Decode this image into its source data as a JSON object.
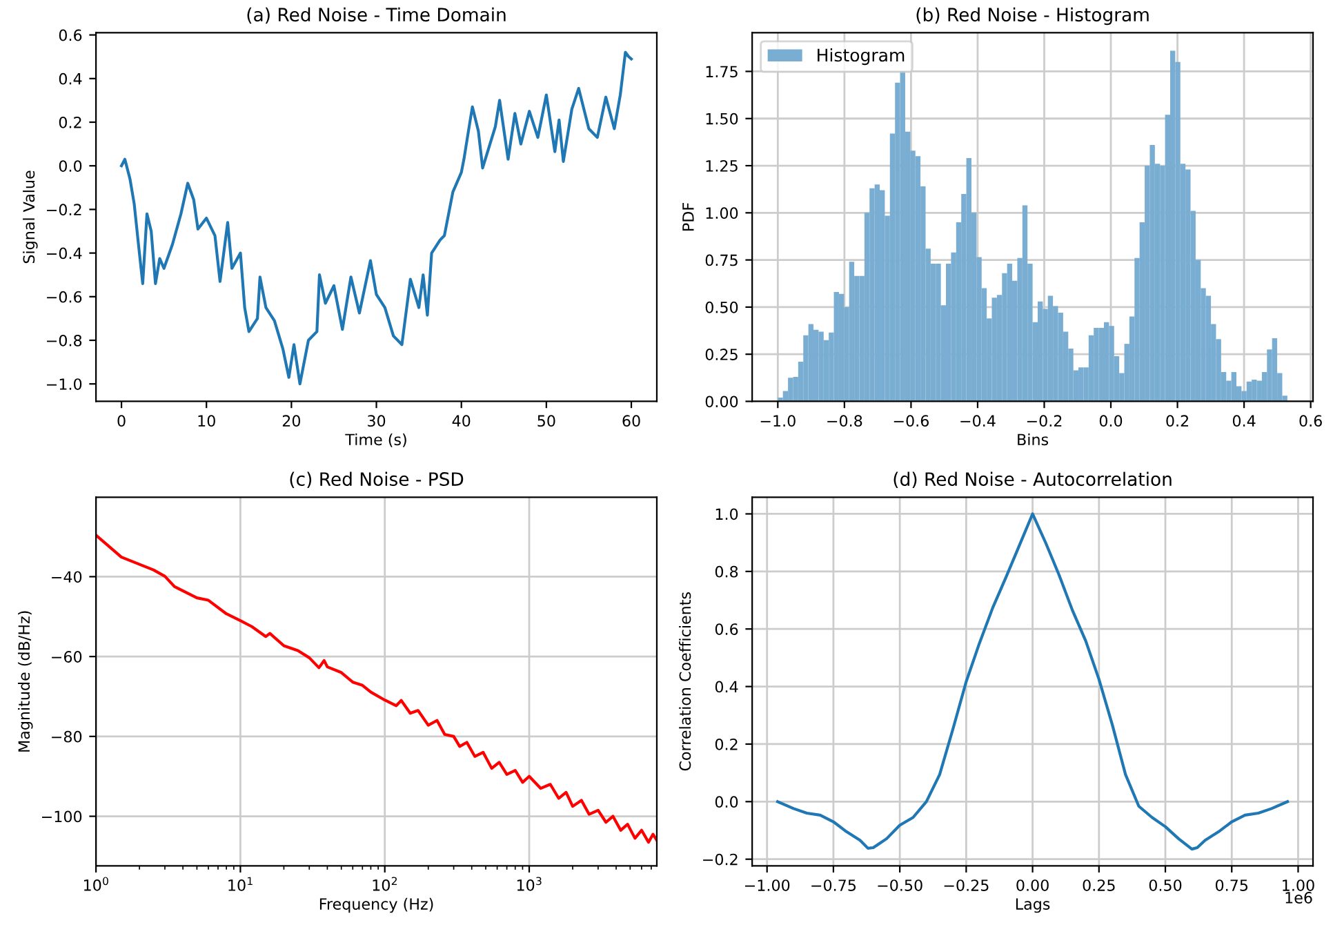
{
  "chart_data": [
    {
      "type": "line",
      "title": "(a) Red Noise - Time Domain",
      "xlabel": "Time (s)",
      "ylabel": "Signal Value",
      "grid": false,
      "xlim": [
        -3,
        63
      ],
      "xticks": [
        0,
        10,
        20,
        30,
        40,
        50,
        60
      ],
      "ylim": [
        -1.08,
        0.61
      ],
      "yticks": [
        {
          "value": -1.0,
          "label": "−1.0"
        },
        {
          "value": -0.8,
          "label": "−0.8"
        },
        {
          "value": -0.6,
          "label": "−0.6"
        },
        {
          "value": -0.4,
          "label": "−0.4"
        },
        {
          "value": -0.2,
          "label": "−0.2"
        },
        {
          "value": 0.0,
          "label": "0.0"
        },
        {
          "value": 0.2,
          "label": "0.2"
        },
        {
          "value": 0.4,
          "label": "0.4"
        },
        {
          "value": 0.6,
          "label": "0.6"
        }
      ],
      "series": [
        {
          "color": "#1f77b4",
          "x": [
            0,
            0.4,
            1,
            1.5,
            2,
            2.5,
            3,
            3.5,
            4,
            4.5,
            5,
            6,
            7,
            7.8,
            8.5,
            9,
            10,
            11,
            11.6,
            12.5,
            13,
            14,
            14.5,
            15,
            16,
            16.3,
            17,
            18,
            19,
            19.7,
            20.3,
            21,
            22,
            23,
            23.3,
            24,
            25,
            26,
            27,
            28,
            29.3,
            30,
            31,
            32,
            33,
            34,
            35,
            35.5,
            36,
            36.5,
            37.5,
            38,
            39,
            40,
            40.3,
            41,
            41.3,
            42,
            42.5,
            44,
            44.5,
            45.5,
            46.3,
            47,
            48,
            49,
            50,
            51,
            51.5,
            52,
            53,
            53.8,
            55,
            56,
            57,
            58,
            58.7,
            59.3,
            59.7,
            60
          ],
          "values": [
            0.0,
            0.03,
            -0.06,
            -0.175,
            -0.36,
            -0.54,
            -0.22,
            -0.3,
            -0.54,
            -0.425,
            -0.47,
            -0.36,
            -0.22,
            -0.08,
            -0.155,
            -0.29,
            -0.24,
            -0.32,
            -0.53,
            -0.26,
            -0.47,
            -0.4,
            -0.65,
            -0.76,
            -0.7,
            -0.51,
            -0.65,
            -0.71,
            -0.84,
            -0.97,
            -0.82,
            -1.0,
            -0.8,
            -0.76,
            -0.5,
            -0.63,
            -0.55,
            -0.75,
            -0.51,
            -0.675,
            -0.435,
            -0.59,
            -0.65,
            -0.78,
            -0.82,
            -0.52,
            -0.65,
            -0.5,
            -0.685,
            -0.4,
            -0.34,
            -0.32,
            -0.12,
            -0.03,
            0.03,
            0.2,
            0.27,
            0.16,
            -0.01,
            0.18,
            0.3,
            0.03,
            0.24,
            0.1,
            0.25,
            0.13,
            0.325,
            0.065,
            0.21,
            0.02,
            0.26,
            0.355,
            0.17,
            0.13,
            0.315,
            0.17,
            0.325,
            0.52,
            0.5,
            0.49
          ]
        }
      ]
    },
    {
      "type": "histogram",
      "title": "(b) Red Noise - Histogram",
      "xlabel": "Bins",
      "ylabel": "PDF",
      "grid": true,
      "legend": "top left",
      "xlim": [
        -1.077,
        0.607
      ],
      "xticks": [
        {
          "value": -1.0,
          "label": "−1.0"
        },
        {
          "value": -0.8,
          "label": "−0.8"
        },
        {
          "value": -0.6,
          "label": "−0.6"
        },
        {
          "value": -0.4,
          "label": "−0.4"
        },
        {
          "value": -0.2,
          "label": "−0.2"
        },
        {
          "value": 0.0,
          "label": "0.0"
        },
        {
          "value": 0.2,
          "label": "0.2"
        },
        {
          "value": 0.4,
          "label": "0.4"
        },
        {
          "value": 0.6,
          "label": "0.6"
        }
      ],
      "ylim": [
        0,
        1.955
      ],
      "yticks": [
        {
          "value": 0,
          "label": "0.00"
        },
        {
          "value": 0.25,
          "label": "0.25"
        },
        {
          "value": 0.5,
          "label": "0.50"
        },
        {
          "value": 0.75,
          "label": "0.75"
        },
        {
          "value": 1.0,
          "label": "1.00"
        },
        {
          "value": 1.25,
          "label": "1.25"
        },
        {
          "value": 1.5,
          "label": "1.50"
        },
        {
          "value": 1.75,
          "label": "1.75"
        }
      ],
      "bins": [
        -1.0,
        -0.9847,
        -0.9694,
        -0.9541,
        -0.9388,
        -0.9235,
        -0.9082,
        -0.8929,
        -0.8776,
        -0.8623,
        -0.847,
        -0.8317,
        -0.8164,
        -0.8011,
        -0.7858,
        -0.7705,
        -0.7552,
        -0.7399,
        -0.7246,
        -0.7093,
        -0.694,
        -0.6787,
        -0.6634,
        -0.6481,
        -0.6328,
        -0.6175,
        -0.6022,
        -0.5869,
        -0.5716,
        -0.5563,
        -0.541,
        -0.5257,
        -0.5104,
        -0.4951,
        -0.4798,
        -0.4645,
        -0.4492,
        -0.4339,
        -0.4186,
        -0.4033,
        -0.388,
        -0.3727,
        -0.3574,
        -0.3421,
        -0.3268,
        -0.3115,
        -0.2962,
        -0.2809,
        -0.2656,
        -0.2503,
        -0.235,
        -0.2197,
        -0.2044,
        -0.1891,
        -0.1738,
        -0.1585,
        -0.1432,
        -0.1279,
        -0.1126,
        -0.0973,
        -0.082,
        -0.0667,
        -0.0514,
        -0.0361,
        -0.0208,
        -0.0055,
        0.0098,
        0.0251,
        0.0404,
        0.0557,
        0.071,
        0.0863,
        0.1016,
        0.1169,
        0.1322,
        0.1475,
        0.1628,
        0.1781,
        0.1934,
        0.2087,
        0.224,
        0.2393,
        0.2546,
        0.2699,
        0.2852,
        0.3005,
        0.3158,
        0.3311,
        0.3464,
        0.3617,
        0.377,
        0.3923,
        0.4076,
        0.4229,
        0.4382,
        0.4535,
        0.4688,
        0.4841,
        0.4994,
        0.5147,
        0.53
      ],
      "series": [
        {
          "name": "Histogram",
          "color": "#79add2",
          "values": [
            0.02,
            0.055,
            0.125,
            0.13,
            0.21,
            0.35,
            0.41,
            0.38,
            0.37,
            0.325,
            0.365,
            0.58,
            0.57,
            0.5,
            0.74,
            0.665,
            0.665,
            1.0,
            1.13,
            1.15,
            1.12,
            0.985,
            1.42,
            1.69,
            1.75,
            1.43,
            1.33,
            1.3,
            1.14,
            0.81,
            0.73,
            0.73,
            0.51,
            0.73,
            0.79,
            0.95,
            1.1,
            1.29,
            1.0,
            0.765,
            0.6,
            0.44,
            0.55,
            0.565,
            0.68,
            0.73,
            0.64,
            0.76,
            1.04,
            0.73,
            0.42,
            0.53,
            0.49,
            0.56,
            0.505,
            0.47,
            0.37,
            0.28,
            0.165,
            0.18,
            0.18,
            0.35,
            0.39,
            0.39,
            0.42,
            0.4,
            0.24,
            0.15,
            0.305,
            0.45,
            0.76,
            0.95,
            1.25,
            1.36,
            1.26,
            1.25,
            1.52,
            1.86,
            1.8,
            1.26,
            1.23,
            1.01,
            0.75,
            0.6,
            0.56,
            0.41,
            0.33,
            0.155,
            0.11,
            0.155,
            0.08,
            0.055,
            0.105,
            0.115,
            0.11,
            0.155,
            0.275,
            0.335,
            0.15,
            0.03
          ]
        }
      ]
    },
    {
      "type": "line",
      "title": "(c) Red Noise - PSD",
      "xlabel": "Frequency (Hz)",
      "ylabel": "Magnitude (dB/Hz)",
      "grid": true,
      "log": "x",
      "xlim": [
        1,
        7650
      ],
      "xticks": [
        {
          "value": 1,
          "label": "10$^{0}$"
        },
        {
          "value": 10,
          "label": "10$^{1}$"
        },
        {
          "value": 100,
          "label": "10$^{2}$"
        },
        {
          "value": 1000,
          "label": "10$^{3}$"
        }
      ],
      "ylim": [
        -112.4,
        -20.1
      ],
      "yticks": [
        {
          "value": -40,
          "label": "−40"
        },
        {
          "value": -60,
          "label": "−60"
        },
        {
          "value": -80,
          "label": "−80"
        },
        {
          "value": -100,
          "label": "−100"
        }
      ],
      "series": [
        {
          "color": "#ff0000",
          "x": [
            1,
            1.5,
            2.5,
            3,
            3.5,
            5,
            6,
            8,
            10,
            12,
            15,
            16,
            20,
            25,
            30,
            35,
            38,
            40,
            50,
            60,
            70,
            80,
            100,
            120,
            130,
            150,
            170,
            200,
            230,
            260,
            300,
            330,
            370,
            420,
            480,
            550,
            620,
            700,
            800,
            900,
            1000,
            1200,
            1400,
            1600,
            1800,
            2000,
            2300,
            2600,
            3000,
            3400,
            3800,
            4300,
            4800,
            5400,
            6000,
            6700,
            7200,
            7650
          ],
          "values": [
            -29.6,
            -35.1,
            -38.3,
            -39.9,
            -42.5,
            -45.3,
            -45.9,
            -49.3,
            -51.0,
            -52.5,
            -55.0,
            -54.2,
            -57.3,
            -58.5,
            -60.3,
            -62.8,
            -61.0,
            -62.6,
            -64.0,
            -66.4,
            -67.2,
            -68.9,
            -70.9,
            -72.3,
            -71.0,
            -74.2,
            -73.5,
            -77.2,
            -76.0,
            -79.5,
            -80.0,
            -82.5,
            -81.5,
            -85.0,
            -84.0,
            -88.0,
            -86.5,
            -89.5,
            -88.5,
            -91.5,
            -90.0,
            -93.0,
            -92.0,
            -95.5,
            -94.0,
            -97.5,
            -96.0,
            -99.5,
            -98.5,
            -101.5,
            -100.0,
            -103.5,
            -102.0,
            -105.5,
            -103.5,
            -106.5,
            -104.5,
            -106.0
          ]
        }
      ]
    },
    {
      "type": "line",
      "title": "(d) Red Noise - Autocorrelation",
      "xlabel": "Lags",
      "ylabel": "Correlation Coefficients",
      "grid": true,
      "annotations": [
        "1e6"
      ],
      "xlim": [
        -1.056,
        1.056
      ],
      "xticks": [
        {
          "value": -1.0,
          "label": "−1.00"
        },
        {
          "value": -0.75,
          "label": "−0.75"
        },
        {
          "value": -0.5,
          "label": "−0.50"
        },
        {
          "value": -0.25,
          "label": "−0.25"
        },
        {
          "value": 0,
          "label": "0.00"
        },
        {
          "value": 0.25,
          "label": "0.25"
        },
        {
          "value": 0.5,
          "label": "0.50"
        },
        {
          "value": 0.75,
          "label": "0.75"
        },
        {
          "value": 1.0,
          "label": "1.00"
        }
      ],
      "ylim": [
        -0.223,
        1.058
      ],
      "yticks": [
        {
          "value": -0.2,
          "label": "−0.2"
        },
        {
          "value": 0.0,
          "label": "0.0"
        },
        {
          "value": 0.2,
          "label": "0.2"
        },
        {
          "value": 0.4,
          "label": "0.4"
        },
        {
          "value": 0.6,
          "label": "0.6"
        },
        {
          "value": 0.8,
          "label": "0.8"
        },
        {
          "value": 1.0,
          "label": "1.0"
        }
      ],
      "series": [
        {
          "color": "#1f77b4",
          "x": [
            -0.96,
            -0.9,
            -0.85,
            -0.8,
            -0.75,
            -0.7,
            -0.65,
            -0.62,
            -0.6,
            -0.55,
            -0.5,
            -0.45,
            -0.4,
            -0.35,
            -0.3,
            -0.25,
            -0.2,
            -0.15,
            -0.1,
            -0.05,
            0,
            0.05,
            0.1,
            0.15,
            0.2,
            0.25,
            0.3,
            0.35,
            0.4,
            0.45,
            0.5,
            0.55,
            0.6,
            0.62,
            0.65,
            0.7,
            0.75,
            0.8,
            0.85,
            0.9,
            0.96
          ],
          "values": [
            0.0,
            -0.024,
            -0.04,
            -0.047,
            -0.07,
            -0.105,
            -0.134,
            -0.162,
            -0.16,
            -0.129,
            -0.082,
            -0.055,
            0.0,
            0.094,
            0.252,
            0.417,
            0.551,
            0.674,
            0.78,
            0.89,
            1.0,
            0.898,
            0.787,
            0.665,
            0.559,
            0.425,
            0.268,
            0.094,
            -0.016,
            -0.055,
            -0.087,
            -0.129,
            -0.165,
            -0.16,
            -0.134,
            -0.105,
            -0.07,
            -0.047,
            -0.04,
            -0.024,
            0.0
          ]
        }
      ]
    }
  ]
}
